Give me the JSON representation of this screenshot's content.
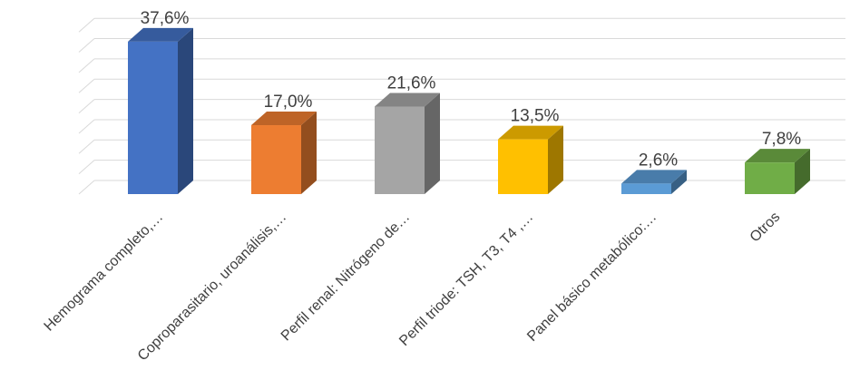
{
  "chart_data": {
    "type": "bar",
    "style": "3d-column",
    "categories": [
      "Hemograma completo,…",
      "Coproparasitario, uroanálisis,…",
      "Perfil renal: Nitrógeno de…",
      "Perfil triode: TSH, T3, T4 ,…",
      "Panel básico metabólico:…",
      "Otros"
    ],
    "values": [
      37.6,
      17.0,
      21.6,
      13.5,
      2.6,
      7.8
    ],
    "value_labels": [
      "37,6%",
      "17,0%",
      "21,6%",
      "13,5%",
      "2,6%",
      "7,8%"
    ],
    "unit": "%",
    "colors": [
      "#4472c4",
      "#ed7d31",
      "#a5a5a5",
      "#ffc000",
      "#5b9bd5",
      "#70ad47"
    ],
    "ylim": [
      0,
      40
    ],
    "grid": true,
    "legend": "none",
    "title": "",
    "xlabel": "",
    "ylabel": ""
  }
}
